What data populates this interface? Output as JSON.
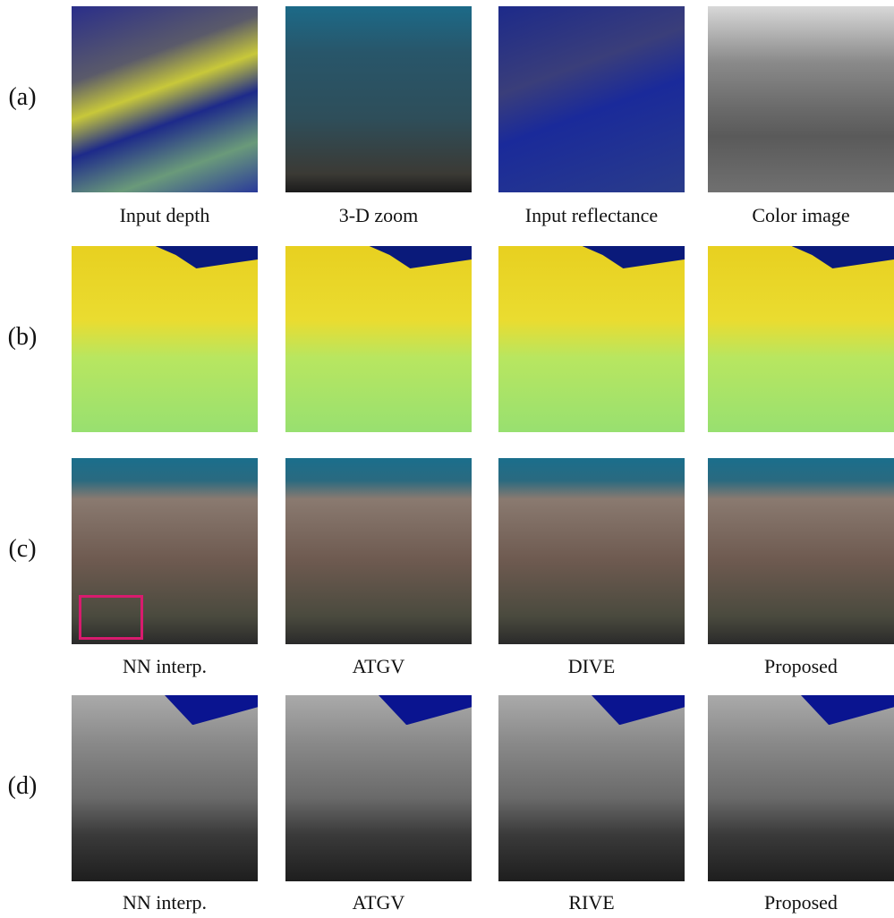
{
  "rows": [
    {
      "label": "(a)",
      "captions": [
        "Input depth",
        "3-D zoom",
        "Input reflectance",
        "Color image"
      ]
    },
    {
      "label": "(b)"
    },
    {
      "label": "(c)",
      "captions": [
        "NN interp.",
        "ATGV",
        "DIVE",
        "Proposed"
      ]
    },
    {
      "label": "(d)",
      "captions": [
        "NN interp.",
        "ATGV",
        "RIVE",
        "Proposed"
      ]
    }
  ]
}
